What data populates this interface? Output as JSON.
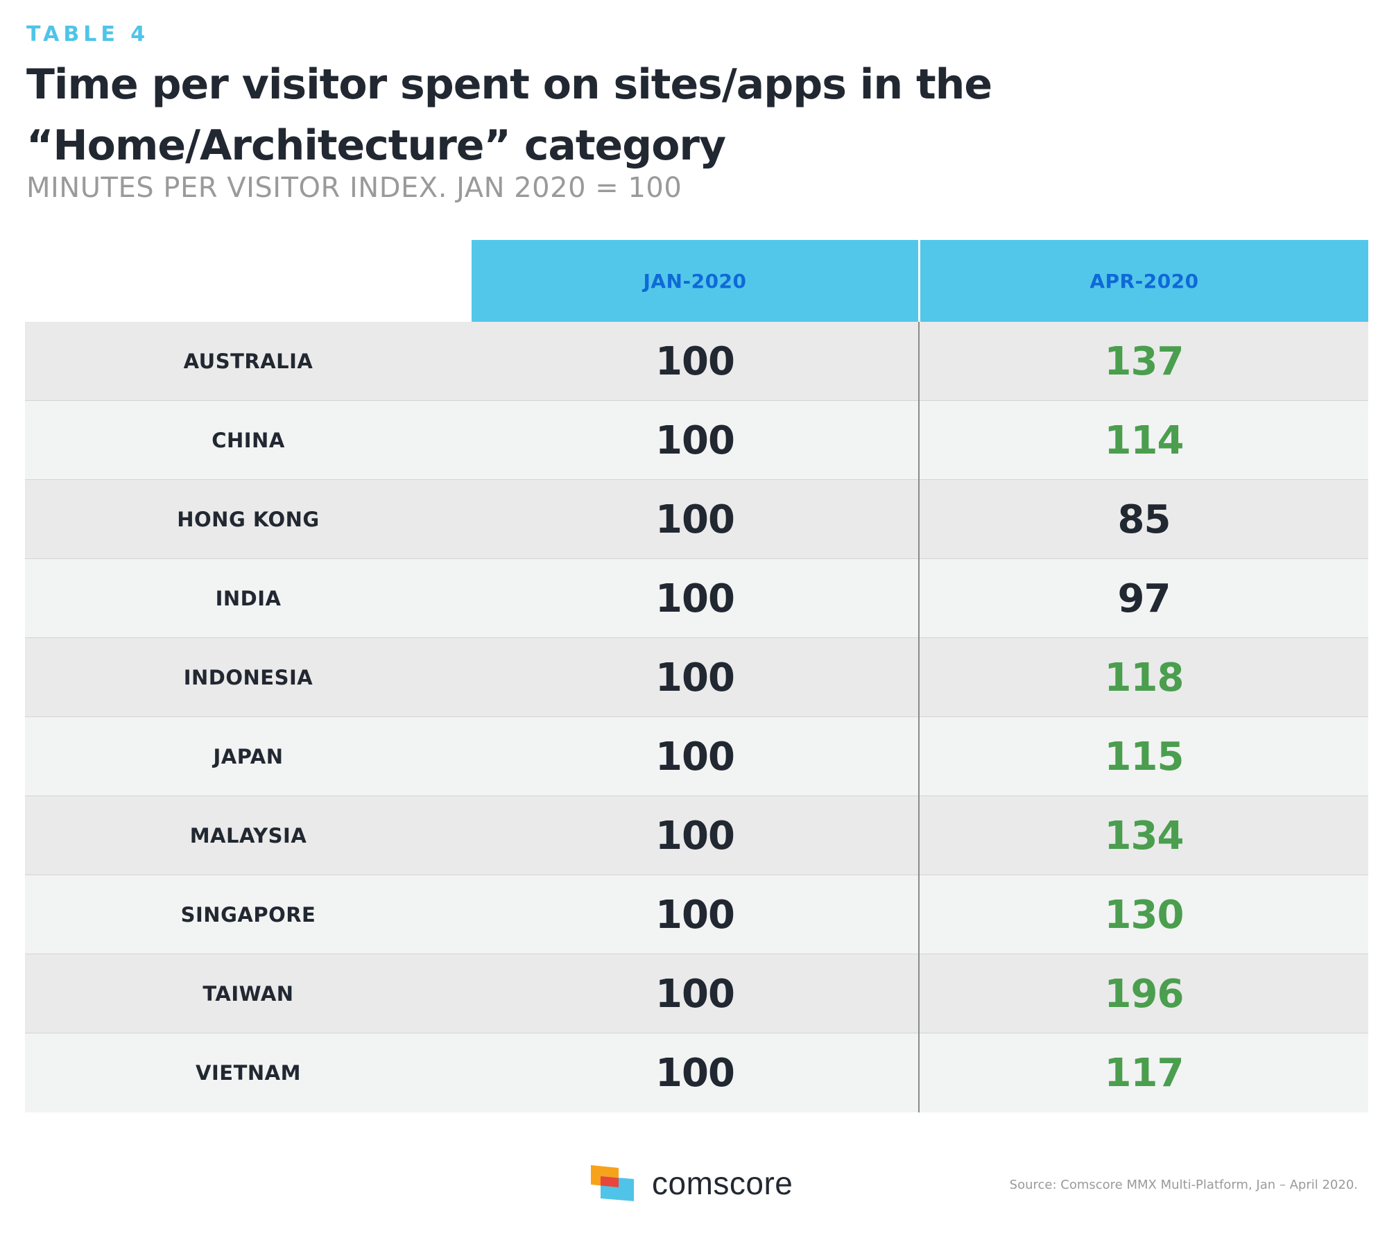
{
  "header": {
    "eyebrow": "TABLE 4",
    "title": "Time per visitor spent on sites/apps in the “Home/Architecture” category",
    "subtitle": "MINUTES PER VISITOR INDEX. JAN 2020 = 100"
  },
  "colors": {
    "accent": "#53c7e9",
    "header_text": "#0f69d8",
    "increase": "#4a9e4e",
    "neutral": "#222831"
  },
  "chart_data": {
    "type": "table",
    "title": "Time per visitor spent on sites/apps in the “Home/Architecture” category",
    "subtitle": "MINUTES PER VISITOR INDEX. JAN 2020 = 100",
    "columns": [
      "JAN-2020",
      "APR-2020"
    ],
    "rows": [
      {
        "country": "AUSTRALIA",
        "jan": 100,
        "apr": 137
      },
      {
        "country": "CHINA",
        "jan": 100,
        "apr": 114
      },
      {
        "country": "HONG KONG",
        "jan": 100,
        "apr": 85
      },
      {
        "country": "INDIA",
        "jan": 100,
        "apr": 97
      },
      {
        "country": "INDONESIA",
        "jan": 100,
        "apr": 118
      },
      {
        "country": "JAPAN",
        "jan": 100,
        "apr": 115
      },
      {
        "country": "MALAYSIA",
        "jan": 100,
        "apr": 134
      },
      {
        "country": "SINGAPORE",
        "jan": 100,
        "apr": 130
      },
      {
        "country": "TAIWAN",
        "jan": 100,
        "apr": 196
      },
      {
        "country": "VIETNAM",
        "jan": 100,
        "apr": 117
      }
    ]
  },
  "footer": {
    "logo_text": "comscore",
    "logo_icon": "comscore-logo-icon",
    "source": "Source: Comscore MMX Multi-Platform, Jan – April 2020."
  }
}
